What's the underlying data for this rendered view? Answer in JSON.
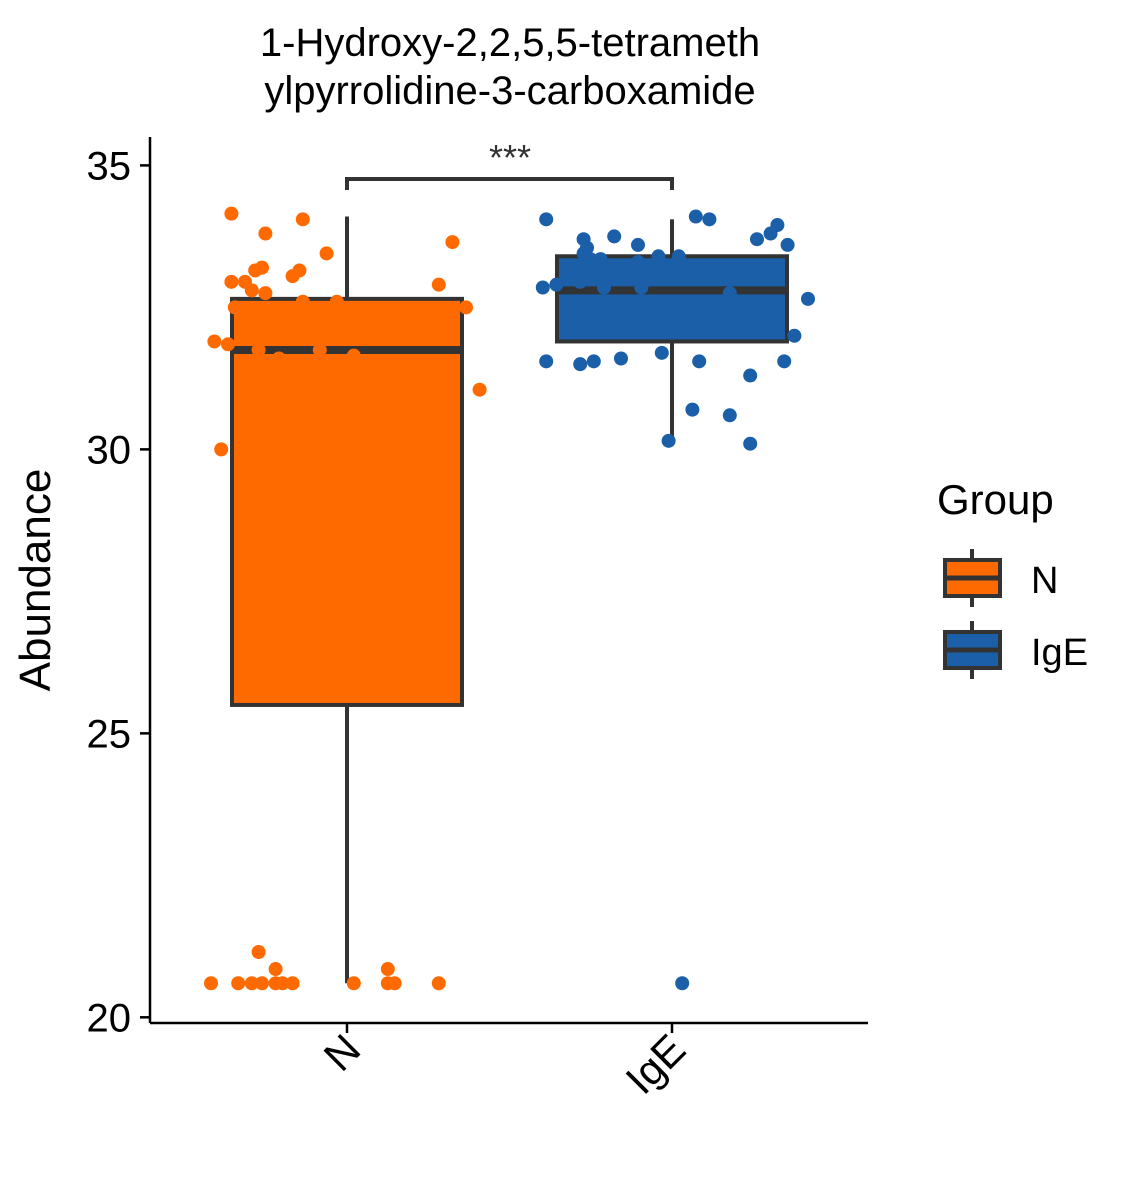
{
  "chart_data": {
    "type": "boxplot",
    "title_line1": "1-Hydroxy-2,2,5,5-tetrameth",
    "title_line2": "ylpyrrolidine-3-carboxamide",
    "ylabel": "Abundance",
    "xlabel": "",
    "ylim": [
      19.9,
      35.5
    ],
    "yticks": [
      20,
      25,
      30,
      35
    ],
    "categories": [
      "N",
      "IgE"
    ],
    "significance": "***",
    "legend": {
      "title": "Group",
      "placement": "right",
      "entries": [
        "N",
        "IgE"
      ]
    },
    "colors": {
      "N": "#ff6a00",
      "IgE": "#1a5fa8",
      "box_line": "#333333"
    },
    "groups": [
      {
        "name": "N",
        "box": {
          "whisker_low": 20.6,
          "q1": 25.5,
          "median": 31.75,
          "q3": 32.65,
          "whisker_high": 34.1
        },
        "points": [
          [
            -0.34,
            34.15
          ],
          [
            -0.13,
            34.05
          ],
          [
            -0.24,
            33.8
          ],
          [
            -0.06,
            33.45
          ],
          [
            0.31,
            33.65
          ],
          [
            -0.34,
            32.95
          ],
          [
            -0.27,
            33.15
          ],
          [
            -0.25,
            33.2
          ],
          [
            -0.16,
            33.05
          ],
          [
            -0.14,
            33.15
          ],
          [
            -0.3,
            32.95
          ],
          [
            -0.28,
            32.8
          ],
          [
            -0.24,
            32.75
          ],
          [
            -0.13,
            32.6
          ],
          [
            -0.03,
            32.6
          ],
          [
            0.27,
            32.9
          ],
          [
            0.35,
            32.5
          ],
          [
            -0.33,
            32.5
          ],
          [
            -0.3,
            32.45
          ],
          [
            -0.39,
            31.9
          ],
          [
            -0.35,
            31.85
          ],
          [
            -0.26,
            31.75
          ],
          [
            -0.2,
            31.6
          ],
          [
            -0.08,
            31.75
          ],
          [
            0.02,
            31.65
          ],
          [
            0.39,
            31.05
          ],
          [
            -0.37,
            30.0
          ],
          [
            -0.4,
            20.6
          ],
          [
            -0.32,
            20.6
          ],
          [
            -0.28,
            20.6
          ],
          [
            -0.25,
            20.6
          ],
          [
            -0.21,
            20.6
          ],
          [
            -0.19,
            20.6
          ],
          [
            -0.16,
            20.6
          ],
          [
            -0.21,
            20.85
          ],
          [
            -0.26,
            21.15
          ],
          [
            0.02,
            20.6
          ],
          [
            0.12,
            20.6
          ],
          [
            0.14,
            20.6
          ],
          [
            0.27,
            20.6
          ],
          [
            0.12,
            20.85
          ]
        ]
      },
      {
        "name": "IgE",
        "box": {
          "whisker_low": 30.2,
          "q1": 31.9,
          "median": 32.8,
          "q3": 33.4,
          "whisker_high": 34.05
        },
        "points": [
          [
            -0.37,
            34.05
          ],
          [
            0.07,
            34.1
          ],
          [
            0.11,
            34.05
          ],
          [
            0.31,
            33.95
          ],
          [
            0.29,
            33.8
          ],
          [
            0.25,
            33.7
          ],
          [
            0.34,
            33.6
          ],
          [
            -0.26,
            33.7
          ],
          [
            -0.17,
            33.75
          ],
          [
            -0.1,
            33.6
          ],
          [
            -0.25,
            33.55
          ],
          [
            -0.26,
            33.45
          ],
          [
            -0.24,
            33.35
          ],
          [
            -0.21,
            33.35
          ],
          [
            -0.1,
            33.3
          ],
          [
            -0.04,
            33.4
          ],
          [
            0.02,
            33.4
          ],
          [
            -0.38,
            32.85
          ],
          [
            -0.34,
            32.9
          ],
          [
            -0.27,
            32.95
          ],
          [
            -0.2,
            32.85
          ],
          [
            -0.09,
            32.85
          ],
          [
            0.17,
            32.75
          ],
          [
            0.4,
            32.65
          ],
          [
            0.36,
            32.0
          ],
          [
            -0.37,
            31.55
          ],
          [
            -0.27,
            31.5
          ],
          [
            -0.23,
            31.55
          ],
          [
            -0.15,
            31.6
          ],
          [
            -0.03,
            31.7
          ],
          [
            0.08,
            31.55
          ],
          [
            0.33,
            31.55
          ],
          [
            0.23,
            31.3
          ],
          [
            0.06,
            30.7
          ],
          [
            0.17,
            30.6
          ],
          [
            0.23,
            30.1
          ],
          [
            -0.01,
            30.15
          ],
          [
            0.03,
            20.6
          ]
        ]
      }
    ]
  }
}
